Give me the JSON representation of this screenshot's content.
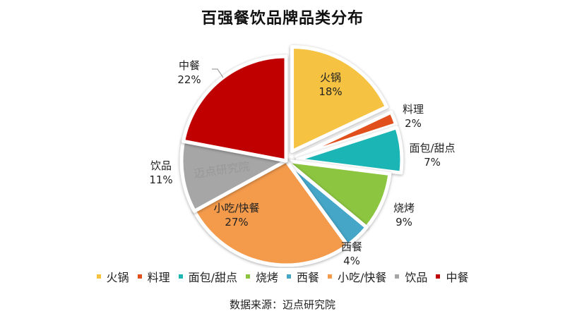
{
  "title": "百强餐饮品牌品类分布",
  "source": "数据来源：迈点研究院",
  "watermark": "迈点研究院",
  "chart_data": {
    "type": "pie",
    "title": "百强餐饮品牌品类分布",
    "categories": [
      "火锅",
      "料理",
      "面包/甜点",
      "烧烤",
      "西餐",
      "小吃/快餐",
      "饮品",
      "中餐"
    ],
    "values": [
      18,
      2,
      7,
      9,
      4,
      27,
      11,
      22
    ],
    "unit": "%",
    "colors": [
      "#F5C242",
      "#E0501C",
      "#1FB5B5",
      "#8CC540",
      "#45A6C8",
      "#F39A4C",
      "#A6A6A6",
      "#C00000"
    ],
    "exploded": [
      "火锅",
      "料理",
      "面包/甜点"
    ],
    "start_angle": "12 o'clock",
    "direction": "clockwise",
    "legend_position": "bottom",
    "data_labels": [
      "火锅 18%",
      "料理 2%",
      "面包/甜点 7%",
      "烧烤 9%",
      "西餐 4%",
      "小吃/快餐 27%",
      "饮品 11%",
      "中餐 22%"
    ]
  },
  "legend": [
    {
      "label": "火锅",
      "color": "#F5C242"
    },
    {
      "label": "料理",
      "color": "#E0501C"
    },
    {
      "label": "面包/甜点",
      "color": "#1FB5B5"
    },
    {
      "label": "烧烤",
      "color": "#8CC540"
    },
    {
      "label": "西餐",
      "color": "#45A6C8"
    },
    {
      "label": "小吃/快餐",
      "color": "#F39A4C"
    },
    {
      "label": "饮品",
      "color": "#A6A6A6"
    },
    {
      "label": "中餐",
      "color": "#C00000"
    }
  ]
}
